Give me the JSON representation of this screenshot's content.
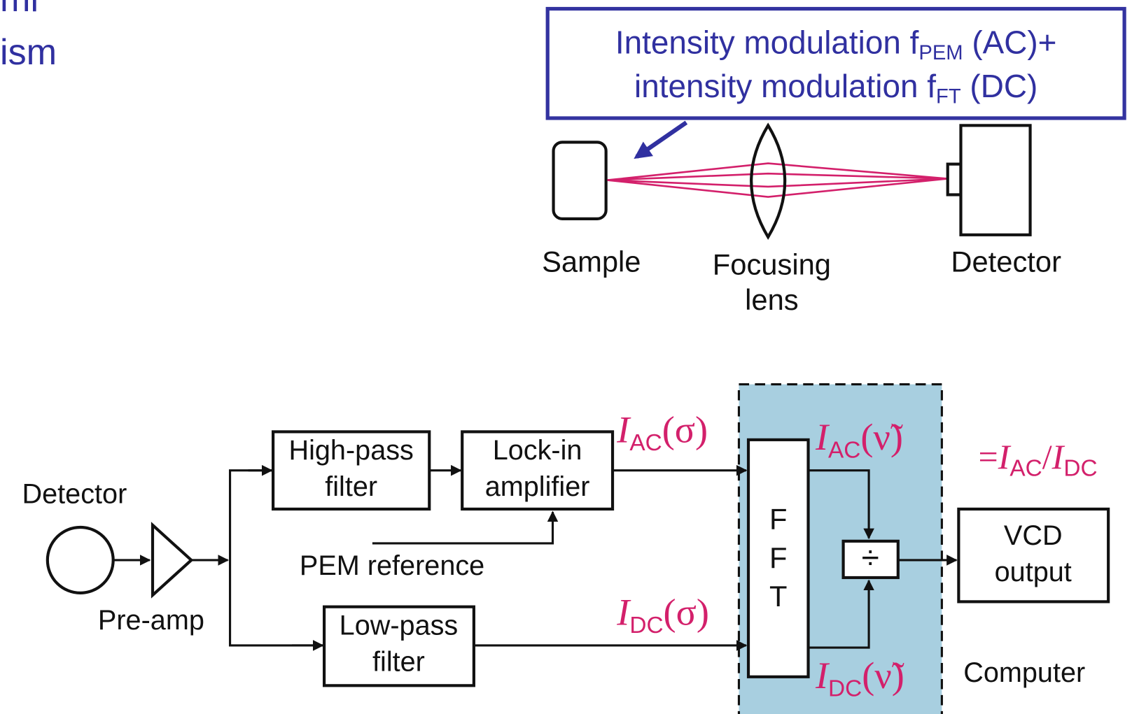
{
  "side_text": {
    "line1": "ml",
    "line2": "ism"
  },
  "callout": {
    "line1": {
      "text": "Intensity modulation f",
      "sub": "PEM",
      "tail": " (AC)+"
    },
    "line2": {
      "text": "intensity modulation f",
      "sub": "FT",
      "tail": " (DC)"
    }
  },
  "optics": {
    "sample": "Sample",
    "lens": [
      "Focusing",
      "lens"
    ],
    "detector": "Detector"
  },
  "blocks": {
    "detector": "Detector",
    "preamp": "Pre-amp",
    "highpass": [
      "High-pass",
      "filter"
    ],
    "lockin": [
      "Lock-in",
      "amplifier"
    ],
    "pem_reference": "PEM reference",
    "lowpass": [
      "Low-pass",
      "filter"
    ],
    "fft": [
      "F",
      "F",
      "T"
    ],
    "divide": "÷",
    "vcd": [
      "VCD",
      "output"
    ],
    "computer": "Computer"
  },
  "signals": {
    "iac_sigma": {
      "symbol": "I",
      "sub": "AC",
      "arg": "(σ)"
    },
    "idc_sigma": {
      "symbol": "I",
      "sub": "DC",
      "arg": "(σ)"
    },
    "iac_nu": {
      "symbol": "I",
      "sub": "AC",
      "arg": "(ν̃)"
    },
    "idc_nu": {
      "symbol": "I",
      "sub": "DC",
      "arg": "(ν̃)"
    },
    "ratio": {
      "prefix": "=",
      "num": "I",
      "num_sub": "AC",
      "sep": "/",
      "den": "I",
      "den_sub": "DC"
    }
  }
}
